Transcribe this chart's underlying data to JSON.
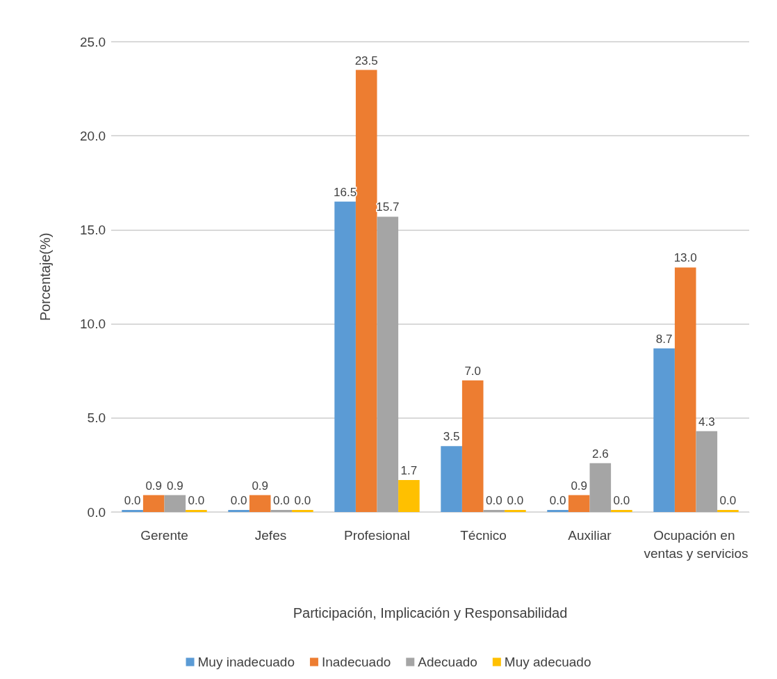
{
  "chart_data": {
    "type": "bar",
    "xlabel": "Participación, Implicación y Responsabilidad",
    "ylabel": "Porcentaje(%)",
    "categories": [
      "Gerente",
      "Jefes",
      "Profesional",
      "Técnico",
      "Auxiliar",
      "Ocupación en ventas y servicios"
    ],
    "series": [
      {
        "name": "Muy inadecuado",
        "color": "#5b9bd5",
        "values": [
          0.0,
          0.0,
          16.5,
          3.5,
          0.0,
          8.7
        ],
        "value_labels": [
          "0.0",
          "0.0",
          "16.5",
          "3.5",
          "0.0",
          "8.7"
        ]
      },
      {
        "name": "Inadecuado",
        "color": "#ed7d31",
        "values": [
          0.9,
          0.9,
          23.5,
          7.0,
          0.9,
          13.0
        ],
        "value_labels": [
          "0.9",
          "0.9",
          "23.5",
          "7.0",
          "0.9",
          "13.0"
        ]
      },
      {
        "name": "Adecuado",
        "color": "#a5a5a5",
        "values": [
          0.9,
          0.0,
          15.7,
          0.0,
          2.6,
          4.3
        ],
        "value_labels": [
          "0.9",
          "0.0",
          "15.7",
          "0.0",
          "2.6",
          "4.3"
        ]
      },
      {
        "name": "Muy adecuado",
        "color": "#ffc000",
        "values": [
          0.0,
          0.0,
          1.7,
          0.0,
          0.0,
          0.0
        ],
        "value_labels": [
          "0.0",
          "0.0",
          "1.7",
          "0.0",
          "0.0",
          "0.0"
        ]
      }
    ],
    "ylim": [
      0,
      25
    ],
    "yticks": [
      {
        "value": 0,
        "label": "0.0"
      },
      {
        "value": 5,
        "label": "5.0"
      },
      {
        "value": 10,
        "label": "10.0"
      },
      {
        "value": 15,
        "label": "15.0"
      },
      {
        "value": 20,
        "label": "20.0"
      },
      {
        "value": 25,
        "label": "25.0"
      }
    ],
    "grid": "y",
    "legend": "bottom"
  }
}
